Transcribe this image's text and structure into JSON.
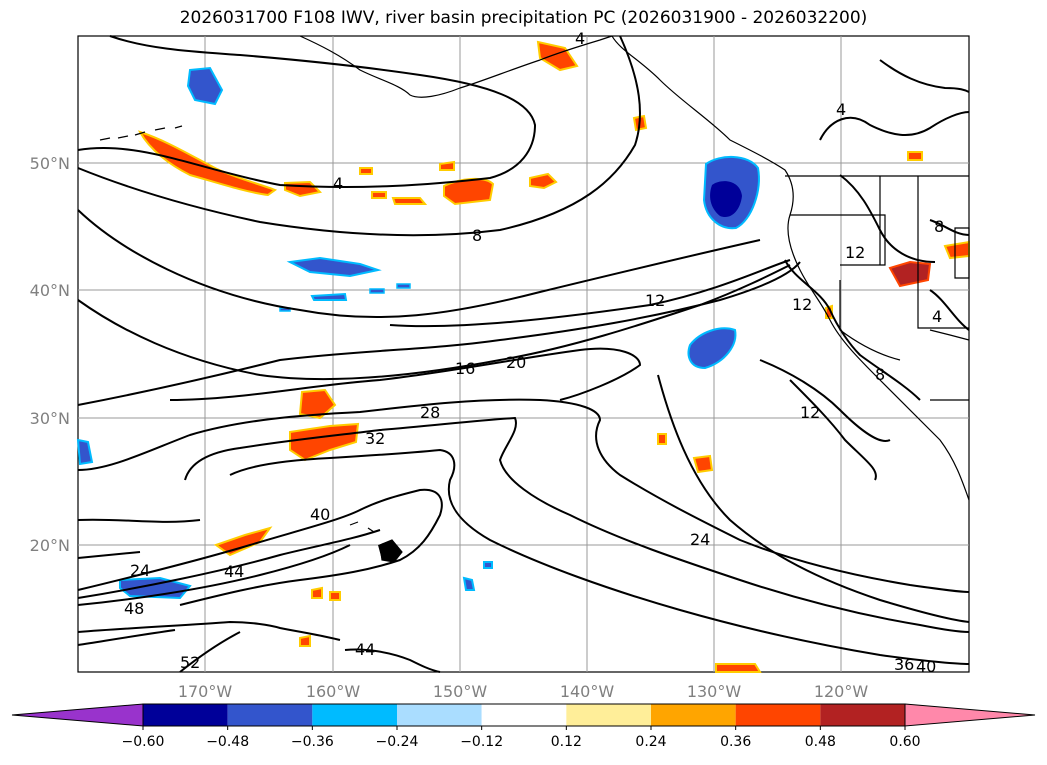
{
  "title": "2026031700 F108 IWV, river basin precipitation PC (2026031900 - 2026032200)",
  "latitudes": [
    "50°N",
    "40°N",
    "30°N",
    "20°N"
  ],
  "longitudes": [
    "170°W",
    "160°W",
    "150°W",
    "140°W",
    "130°W",
    "120°W"
  ],
  "contour_labels": [
    "4",
    "4",
    "8",
    "12",
    "16",
    "20",
    "28",
    "32",
    "40",
    "44",
    "24",
    "48",
    "52",
    "44",
    "24",
    "12",
    "4",
    "12",
    "12",
    "8",
    "36",
    "40",
    "8",
    "4"
  ],
  "colorbar": {
    "ticks": [
      "−0.60",
      "−0.48",
      "−0.36",
      "−0.24",
      "−0.12",
      "0.12",
      "0.24",
      "0.36",
      "0.48",
      "0.60"
    ],
    "colors": [
      "#9933cc",
      "#000099",
      "#3355cc",
      "#00bbff",
      "#aaddff",
      "#ffffff",
      "#ffee99",
      "#ffa500",
      "#ff4500",
      "#b22222",
      "#ff88aa"
    ]
  },
  "colors": {
    "orange": "#ff4500",
    "yellow": "#ffcc00",
    "blue": "#3355cc",
    "navy": "#000099",
    "cyan": "#00bbff"
  }
}
